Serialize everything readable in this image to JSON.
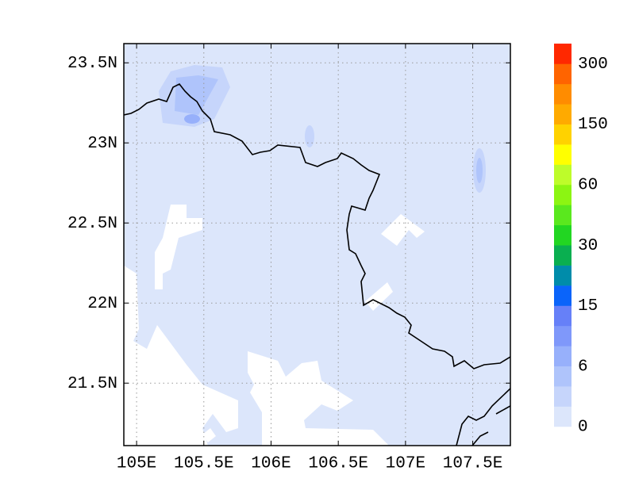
{
  "map": {
    "lon_range": [
      104.905,
      107.78
    ],
    "lat_range": [
      21.11,
      23.62
    ],
    "lon_ticks": [
      {
        "value": 105,
        "label": "105E"
      },
      {
        "value": 105.5,
        "label": "105.5E"
      },
      {
        "value": 106,
        "label": "106E"
      },
      {
        "value": 106.5,
        "label": "106.5E"
      },
      {
        "value": 107,
        "label": "107E"
      },
      {
        "value": 107.5,
        "label": "107.5E"
      }
    ],
    "lat_ticks": [
      {
        "value": 21.5,
        "label": "21.5N"
      },
      {
        "value": 22,
        "label": "22N"
      },
      {
        "value": 22.5,
        "label": "22.5N"
      },
      {
        "value": 23,
        "label": "23N"
      },
      {
        "value": 23.5,
        "label": "23.5N"
      }
    ],
    "grid": true
  },
  "colorbar": {
    "labels": [
      0,
      6,
      15,
      30,
      60,
      150,
      300
    ],
    "colors": [
      "#dce6fb",
      "#c6d5fb",
      "#afc4fb",
      "#97b0fb",
      "#7f98fa",
      "#6680f8",
      "#0a64fa",
      "#008caa",
      "#0aaf50",
      "#22d622",
      "#5ae81e",
      "#8cf512",
      "#befc2a",
      "#ffff00",
      "#ffd200",
      "#ffaa00",
      "#ff8c00",
      "#ff6400",
      "#ff2800"
    ]
  }
}
